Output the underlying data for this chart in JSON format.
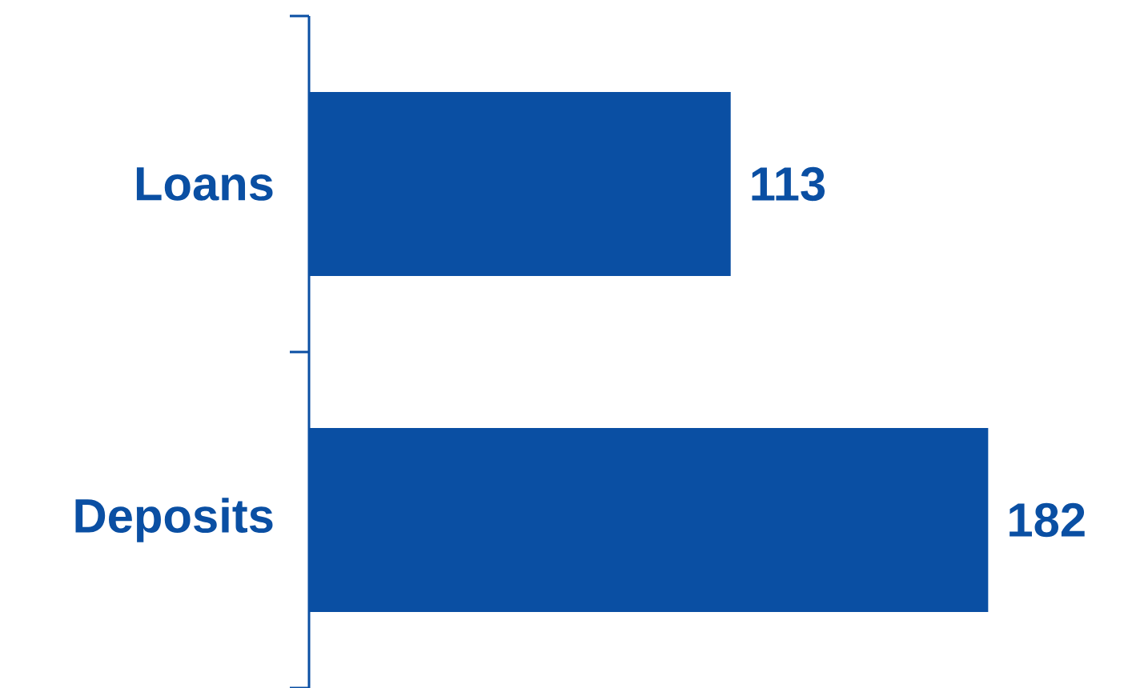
{
  "chart_data": {
    "type": "bar",
    "orientation": "horizontal",
    "categories": [
      "Loans",
      "Deposits"
    ],
    "values": [
      113,
      182
    ],
    "color": "#0a4fa3",
    "data_labels": true,
    "tick_labels": "y"
  }
}
